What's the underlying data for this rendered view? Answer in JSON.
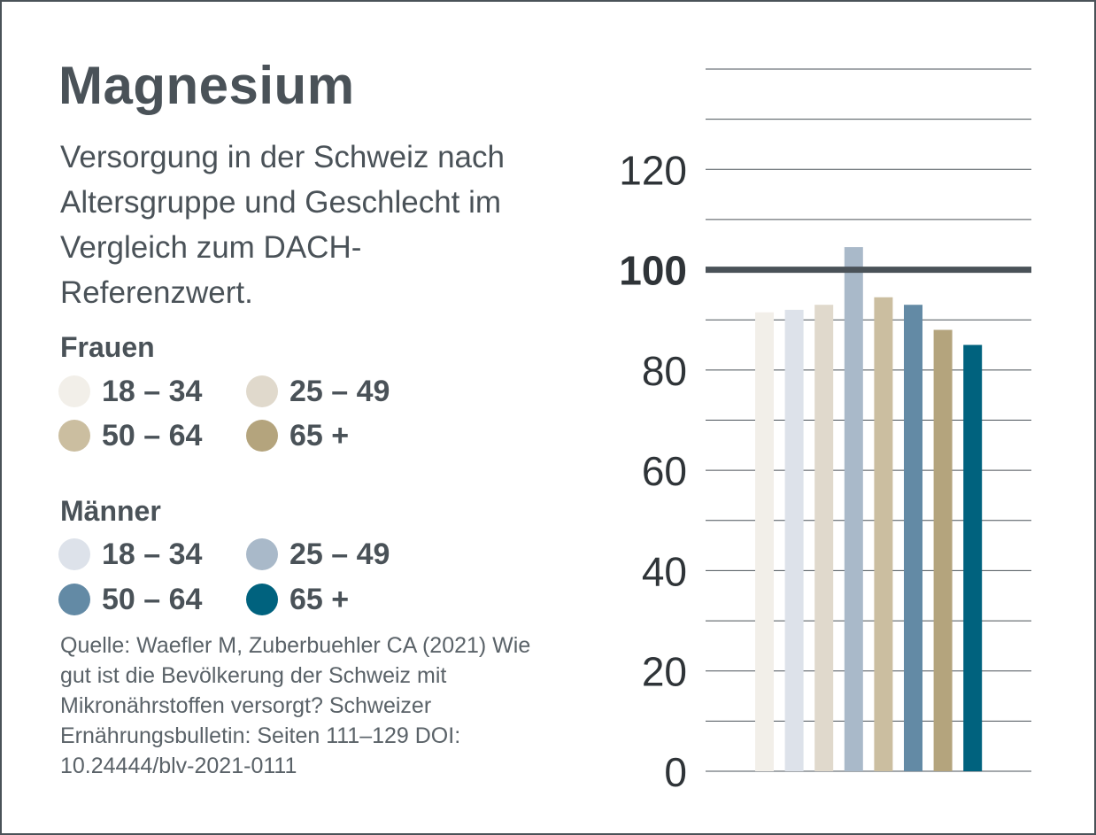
{
  "title": "Magnesium",
  "subtitle": "Versorgung in der Schweiz nach Altersgruppe und Geschlecht im Vergleich zum DACH-Referenzwert.",
  "legend": {
    "frauen": {
      "label": "Frauen",
      "items": [
        {
          "label": "18 – 34",
          "color": "#f2efe9"
        },
        {
          "label": "25 – 49",
          "color": "#e0d9cc"
        },
        {
          "label": "50 – 64",
          "color": "#cbbea0"
        },
        {
          "label": "65 +",
          "color": "#b4a47d"
        }
      ]
    },
    "maenner": {
      "label": "Männer",
      "items": [
        {
          "label": "18 – 34",
          "color": "#dde2ea"
        },
        {
          "label": "25 – 49",
          "color": "#a9b9c9"
        },
        {
          "label": "50 – 64",
          "color": "#638aa5"
        },
        {
          "label": "65 +",
          "color": "#00627e"
        }
      ]
    }
  },
  "source": "Quelle: Waefler M, Zuberbuehler CA (2021) Wie gut ist die Bevölkerung der Schweiz mit Mikronährstoffen versorgt? Schweizer Ernährungsbulletin: Seiten 111–129 DOI: 10.24444/blv-2021-0111",
  "chart_data": {
    "type": "bar",
    "categories": [
      "Frauen 18 – 34",
      "Männer 18 – 34",
      "Frauen 25 – 49",
      "Männer 25 – 49",
      "Frauen 50 – 64",
      "Männer 50 – 64",
      "Frauen 65 +",
      "Männer 65 +"
    ],
    "values": [
      91.5,
      92,
      93,
      104.5,
      94.5,
      93,
      88,
      85
    ],
    "colors": [
      "#f2efe9",
      "#dde2ea",
      "#e0d9cc",
      "#a9b9c9",
      "#cbbea0",
      "#638aa5",
      "#b4a47d",
      "#00627e"
    ],
    "ylim": [
      0,
      140
    ],
    "yticks": [
      0,
      20,
      40,
      60,
      80,
      100,
      120
    ],
    "gridlines": [
      0,
      10,
      20,
      30,
      40,
      50,
      60,
      70,
      80,
      90,
      110,
      120,
      130,
      140
    ],
    "reference_value": 100,
    "reference_label": "100",
    "grid": true,
    "ylabel": "",
    "xlabel": ""
  }
}
